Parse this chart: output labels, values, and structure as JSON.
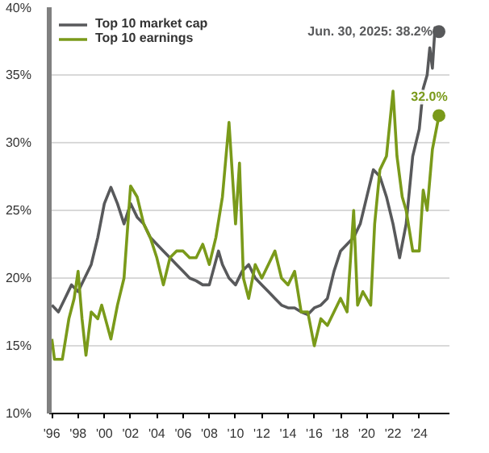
{
  "chart_data": {
    "type": "line",
    "xlim": [
      1995.8,
      2026.3
    ],
    "ylim": [
      10,
      40
    ],
    "xticks": [
      {
        "value": 1996,
        "label": "'96"
      },
      {
        "value": 1998,
        "label": "'98"
      },
      {
        "value": 2000,
        "label": "'00"
      },
      {
        "value": 2002,
        "label": "'02"
      },
      {
        "value": 2004,
        "label": "'04"
      },
      {
        "value": 2006,
        "label": "'06"
      },
      {
        "value": 2008,
        "label": "'08"
      },
      {
        "value": 2010,
        "label": "'10"
      },
      {
        "value": 2012,
        "label": "'12"
      },
      {
        "value": 2014,
        "label": "'14"
      },
      {
        "value": 2016,
        "label": "'16"
      },
      {
        "value": 2018,
        "label": "'18"
      },
      {
        "value": 2020,
        "label": "'20"
      },
      {
        "value": 2022,
        "label": "'22"
      },
      {
        "value": 2024,
        "label": "'24"
      }
    ],
    "yticks": [
      {
        "value": 10,
        "label": "10%"
      },
      {
        "value": 15,
        "label": "15%"
      },
      {
        "value": 20,
        "label": "20%"
      },
      {
        "value": 25,
        "label": "25%"
      },
      {
        "value": 30,
        "label": "30%"
      },
      {
        "value": 35,
        "label": "35%"
      },
      {
        "value": 40,
        "label": "40%"
      }
    ],
    "grid": "y",
    "legend": "top left",
    "series": [
      {
        "name": "Top 10 market cap",
        "color": "#58595b",
        "x": [
          1996,
          1996.5,
          1997,
          1997.5,
          1998,
          1998.5,
          1999,
          1999.5,
          2000,
          2000.5,
          2001,
          2001.5,
          2002,
          2002.5,
          2003,
          2003.5,
          2004,
          2004.5,
          2005,
          2005.5,
          2006,
          2006.5,
          2007,
          2007.5,
          2008,
          2008.7,
          2009,
          2009.5,
          2010,
          2010.5,
          2011,
          2011.5,
          2012,
          2012.5,
          2013,
          2013.5,
          2014,
          2014.5,
          2015,
          2015.5,
          2016,
          2016.5,
          2017,
          2017.5,
          2018,
          2018.5,
          2019,
          2019.5,
          2020,
          2020.5,
          2021,
          2021.5,
          2022,
          2022.5,
          2023,
          2023.5,
          2024,
          2024.3,
          2024.6,
          2024.8,
          2025.0,
          2025.2,
          2025.5
        ],
        "values": [
          18,
          17.5,
          18.5,
          19.5,
          19,
          20,
          21,
          23,
          25.5,
          26.7,
          25.5,
          24,
          25.5,
          24.5,
          24,
          23,
          22.5,
          22,
          21.5,
          21,
          20.5,
          20,
          19.8,
          19.5,
          19.5,
          22,
          21,
          20,
          19.5,
          20.5,
          21,
          20,
          19.5,
          19,
          18.5,
          18,
          17.8,
          17.8,
          17.5,
          17.3,
          17.8,
          18,
          18.5,
          20.5,
          22,
          22.5,
          23,
          24,
          26,
          28,
          27.5,
          26,
          24,
          21.5,
          24,
          29,
          31,
          34,
          35,
          37,
          35.5,
          38.5,
          38.2
        ]
      },
      {
        "name": "Top 10 earnings",
        "color": "#7a9a1a",
        "x": [
          1996,
          1996.2,
          1996.8,
          1997.3,
          1997.7,
          1998,
          1998.3,
          1998.6,
          1999,
          1999.5,
          1999.8,
          2000.5,
          2001,
          2001.5,
          2002,
          2002.5,
          2003,
          2003.5,
          2004,
          2004.5,
          2005,
          2005.5,
          2006,
          2006.5,
          2007,
          2007.5,
          2008,
          2008.5,
          2009,
          2009.5,
          2010,
          2010.3,
          2010.6,
          2011,
          2011.5,
          2012,
          2012.5,
          2013,
          2013.5,
          2014,
          2014.5,
          2015,
          2015.5,
          2016,
          2016.5,
          2017,
          2017.5,
          2018,
          2018.5,
          2019,
          2019.3,
          2019.7,
          2020,
          2020.3,
          2020.6,
          2021,
          2021.5,
          2022,
          2022.3,
          2022.7,
          2023,
          2023.5,
          2024,
          2024.3,
          2024.6,
          2025,
          2025.5
        ],
        "values": [
          15.5,
          14,
          14,
          17,
          18.5,
          20.5,
          17,
          14.3,
          17.5,
          17,
          18,
          15.5,
          18,
          20,
          26.8,
          26,
          24,
          23,
          21.5,
          19.5,
          21.5,
          22,
          22,
          21.5,
          21.5,
          22.5,
          21,
          23,
          26,
          31.5,
          24,
          28.5,
          20,
          18.5,
          21,
          20,
          21,
          22,
          20,
          19.5,
          20.5,
          17.5,
          17.5,
          15,
          17,
          16.5,
          17.5,
          18.5,
          17.5,
          25,
          18,
          19,
          18.5,
          18,
          24,
          28,
          29,
          33.8,
          29,
          26,
          25,
          22,
          22,
          26.5,
          25,
          29.5,
          32
        ]
      }
    ],
    "annotations": [
      {
        "text": "Jun. 30, 2025: 38.2%",
        "x": 2025.5,
        "y": 38.2
      },
      {
        "text": "32.0%",
        "x": 2025.5,
        "y": 32
      }
    ]
  }
}
